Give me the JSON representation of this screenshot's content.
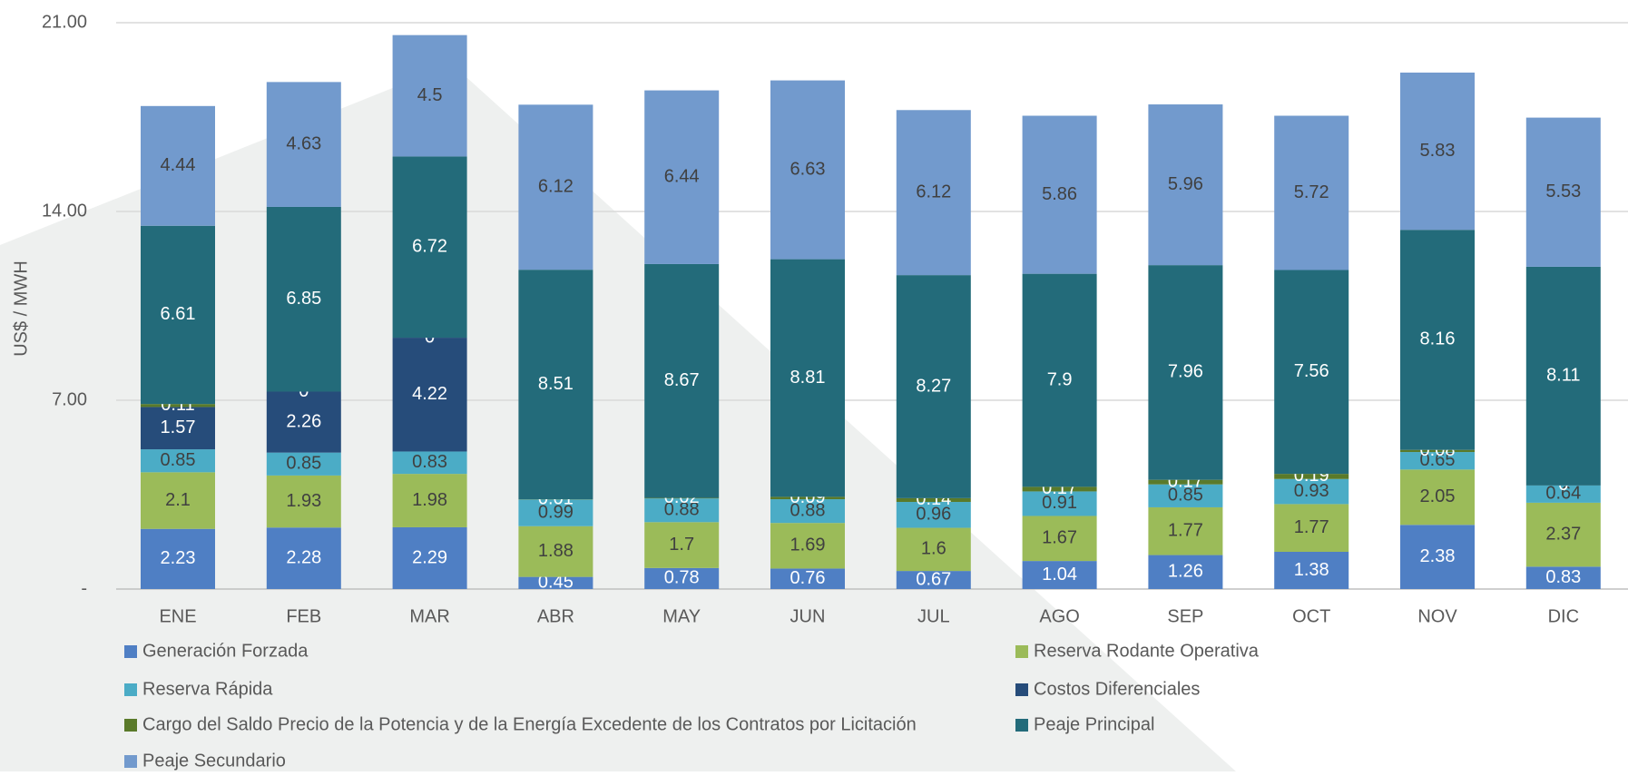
{
  "chart_data": {
    "type": "stacked-bar",
    "y_label": "US$ / MWH",
    "categories": [
      "ENE",
      "FEB",
      "MAR",
      "ABR",
      "MAY",
      "JUN",
      "JUL",
      "AGO",
      "SEP",
      "OCT",
      "NOV",
      "DIC"
    ],
    "ylim": [
      0,
      21
    ],
    "yticks": [
      {
        "value": 0,
        "label": "-"
      },
      {
        "value": 7,
        "label": "7.00"
      },
      {
        "value": 14,
        "label": "14.00"
      },
      {
        "value": 21,
        "label": "21.00"
      }
    ],
    "grid": true,
    "legend": "bottom",
    "series": [
      {
        "name": "Generación Forzada",
        "color": "#4f7fc4",
        "label_color": "#ffffff",
        "values": [
          2.23,
          2.28,
          2.29,
          0.45,
          0.78,
          0.76,
          0.67,
          1.04,
          1.26,
          1.38,
          2.38,
          0.83
        ]
      },
      {
        "name": "Reserva Rodante Operativa",
        "color": "#9bbb59",
        "label_color": "#404040",
        "values": [
          2.1,
          1.93,
          1.98,
          1.88,
          1.7,
          1.69,
          1.6,
          1.67,
          1.77,
          1.77,
          2.05,
          2.37
        ]
      },
      {
        "name": "Reserva Rápida",
        "color": "#4bacc6",
        "label_color": "#404040",
        "values": [
          0.85,
          0.85,
          0.83,
          0.99,
          0.88,
          0.88,
          0.96,
          0.91,
          0.85,
          0.93,
          0.65,
          0.64
        ]
      },
      {
        "name": "Costos Diferenciales",
        "color": "#264c7a",
        "label_color": "#ffffff",
        "values": [
          1.57,
          2.26,
          4.22,
          null,
          null,
          null,
          null,
          null,
          null,
          null,
          null,
          null
        ]
      },
      {
        "name": "Cargo del Saldo Precio de la Potencia y de la Energía Excedente de los Contratos por Licitación",
        "color": "#5a7a2a",
        "label_color": "#ffffff",
        "values": [
          0.11,
          0.0,
          0.0,
          0.01,
          0.02,
          0.09,
          0.14,
          0.17,
          0.17,
          0.19,
          0.08,
          0.0
        ]
      },
      {
        "name": "Peaje Principal",
        "color": "#236b7a",
        "label_color": "#ffffff",
        "values": [
          6.61,
          6.85,
          6.72,
          8.51,
          8.67,
          8.81,
          8.27,
          7.9,
          7.96,
          7.56,
          8.16,
          8.11
        ]
      },
      {
        "name": "Peaje Secundario",
        "color": "#729acd",
        "label_color": "#404040",
        "values": [
          4.44,
          4.63,
          4.5,
          6.12,
          6.44,
          6.63,
          6.12,
          5.86,
          5.96,
          5.72,
          5.83,
          5.53
        ]
      }
    ]
  }
}
